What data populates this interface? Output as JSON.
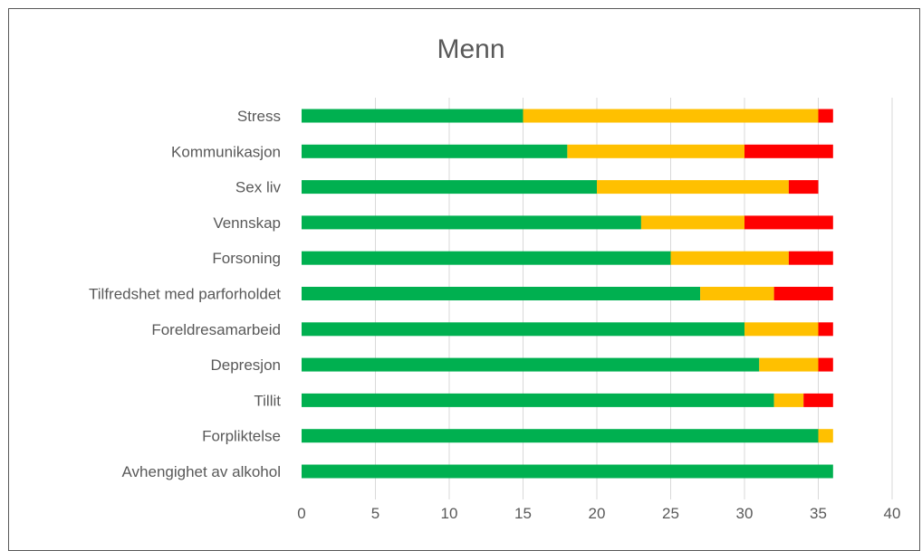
{
  "chart_data": {
    "type": "bar",
    "orientation": "horizontal",
    "stacked": true,
    "title": "Menn",
    "categories": [
      "Stress",
      "Kommunikasjon",
      "Sex liv",
      "Vennskap",
      "Forsoning",
      "Tilfredshet med parforholdet",
      "Foreldresamarbeid",
      "Depresjon",
      "Tillit",
      "Forpliktelse",
      "Avhengighet av alkohol"
    ],
    "series": [
      {
        "color": "#00b050",
        "values": [
          15,
          18,
          20,
          23,
          25,
          27,
          30,
          31,
          32,
          35,
          36
        ]
      },
      {
        "color": "#ffc000",
        "values": [
          20,
          12,
          13,
          7,
          8,
          5,
          5,
          4,
          2,
          1,
          0
        ]
      },
      {
        "color": "#ff0000",
        "values": [
          1,
          6,
          2,
          6,
          3,
          4,
          1,
          1,
          2,
          0,
          0
        ]
      }
    ],
    "xlim": [
      0,
      40
    ],
    "xticks": [
      0,
      5,
      10,
      15,
      20,
      25,
      30,
      35,
      40
    ],
    "grid": "vertical",
    "legend": "none"
  }
}
